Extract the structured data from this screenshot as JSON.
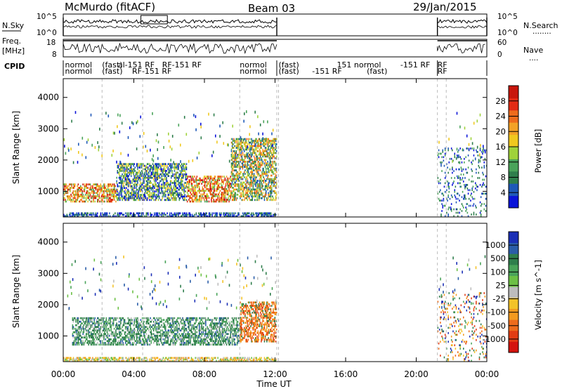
{
  "header": {
    "station": "McMurdo (fitACF)",
    "beam": "Beam 03",
    "date": "29/Jan/2015"
  },
  "params": {
    "nsky_label": "N.Sky",
    "nsearch_label": "N.Search",
    "nsearch_dots": "........",
    "freq_label": "Freq.",
    "freq_unit": "[MHz]",
    "nave_label": "Nave",
    "nave_dots": "....",
    "cpid_label": "CPID",
    "nsky_ticks": [
      "10^5",
      "10^0"
    ],
    "nsearch_ticks": [
      "10^5",
      "10^0"
    ],
    "freq_ticks": [
      "18",
      "8"
    ],
    "nave_ticks": [
      "60",
      "0"
    ],
    "cpid_labels": [
      {
        "text": "normol",
        "t": 0.1
      },
      {
        "text": "normol",
        "t": 0.1
      },
      {
        "text": "(fast)",
        "t": 2.2
      },
      {
        "text": "(fast)",
        "t": 2.2
      },
      {
        "text": "al-151 RF",
        "t": 3.1
      },
      {
        "text": "RF-151 RF",
        "t": 3.9
      },
      {
        "text": "RF-151 RF",
        "t": 5.6
      },
      {
        "text": "normol",
        "t": 10.0
      },
      {
        "text": "normol",
        "t": 10.0
      },
      {
        "text": "(fast)",
        "t": 12.2
      },
      {
        "text": "(fast)",
        "t": 12.2
      },
      {
        "text": "-151 RF",
        "t": 14.1
      },
      {
        "text": "151 normol",
        "t": 15.5
      },
      {
        "text": "(fast)",
        "t": 17.2
      },
      {
        "text": "-151 RF",
        "t": 19.1
      },
      {
        "text": "RF",
        "t": 21.2
      },
      {
        "text": "RF",
        "t": 21.2
      }
    ]
  },
  "axes": {
    "xlabel": "Time UT",
    "xticks": [
      "00:00",
      "04:00",
      "08:00",
      "12:00",
      "16:00",
      "20:00",
      "00:00"
    ],
    "ylabel_top": "Slant Range [km]",
    "ylabel_bottom": "Slant Range [km]",
    "yticks": [
      "1000",
      "2000",
      "3000",
      "4000"
    ]
  },
  "colorbars": {
    "power": {
      "label": "Power [dB]",
      "ticks": [
        "4",
        "8",
        "12",
        "16",
        "20",
        "24",
        "28"
      ],
      "colors": [
        "#0a14d8",
        "#1f59b8",
        "#2f7e4c",
        "#4aa35a",
        "#9fd23a",
        "#f0c81e",
        "#f3a226",
        "#ee6c1c",
        "#e22a14",
        "#c8160c"
      ]
    },
    "velocity": {
      "label": "Velocity [m s^-1]",
      "ticks": [
        "1000",
        "500",
        "100",
        "25",
        "-25",
        "-100",
        "-500",
        "-1000"
      ],
      "colors": [
        "#1b2fb6",
        "#2a5da8",
        "#2f7e4c",
        "#4aa35a",
        "#6cc045",
        "#bdbdbd",
        "#f3c328",
        "#f39a1f",
        "#ee6c1c",
        "#e23c14",
        "#d4140e"
      ]
    }
  },
  "chart_data": [
    {
      "type": "heatmap",
      "title": "Power",
      "xlabel": "Time UT",
      "ylabel": "Slant Range [km]",
      "xlim_hours": [
        0,
        24
      ],
      "ylim_km": [
        180,
        4600
      ],
      "colorbar_range_db": [
        0,
        30
      ],
      "data_gaps_hours": [
        [
          12.1,
          21.2
        ]
      ],
      "regions": [
        {
          "t0": 0.0,
          "t1": 12.1,
          "r0": 180,
          "r1": 320,
          "level": "low scatter"
        },
        {
          "t0": 0.0,
          "t1": 3.0,
          "r0": 650,
          "r1": 1250,
          "level": "20-30 dB"
        },
        {
          "t0": 3.0,
          "t1": 7.0,
          "r0": 700,
          "r1": 1900,
          "level": "8-20 dB"
        },
        {
          "t0": 7.0,
          "t1": 9.5,
          "r0": 650,
          "r1": 1500,
          "level": "20-30 dB"
        },
        {
          "t0": 9.5,
          "t1": 12.1,
          "r0": 700,
          "r1": 2700,
          "level": "8-24 dB"
        },
        {
          "t0": 21.2,
          "t1": 24.0,
          "r0": 180,
          "r1": 2400,
          "level": "4-12 dB sparse"
        }
      ]
    },
    {
      "type": "heatmap",
      "title": "Velocity",
      "xlabel": "Time UT",
      "ylabel": "Slant Range [km]",
      "xlim_hours": [
        0,
        24
      ],
      "ylim_km": [
        180,
        4600
      ],
      "colorbar_range_ms": [
        -1000,
        1000
      ],
      "data_gaps_hours": [
        [
          12.1,
          21.2
        ]
      ],
      "regions": [
        {
          "t0": 0.5,
          "t1": 10.0,
          "r0": 700,
          "r1": 1600,
          "level": "100 to 500 m/s"
        },
        {
          "t0": 10.0,
          "t1": 12.1,
          "r0": 800,
          "r1": 2100,
          "level": "-500 to -100 m/s"
        },
        {
          "t0": 0.0,
          "t1": 12.1,
          "r0": 180,
          "r1": 320,
          "level": "near 0 m/s"
        },
        {
          "t0": 21.2,
          "t1": 24.0,
          "r0": 180,
          "r1": 2400,
          "level": "mixed sparse"
        }
      ]
    }
  ]
}
